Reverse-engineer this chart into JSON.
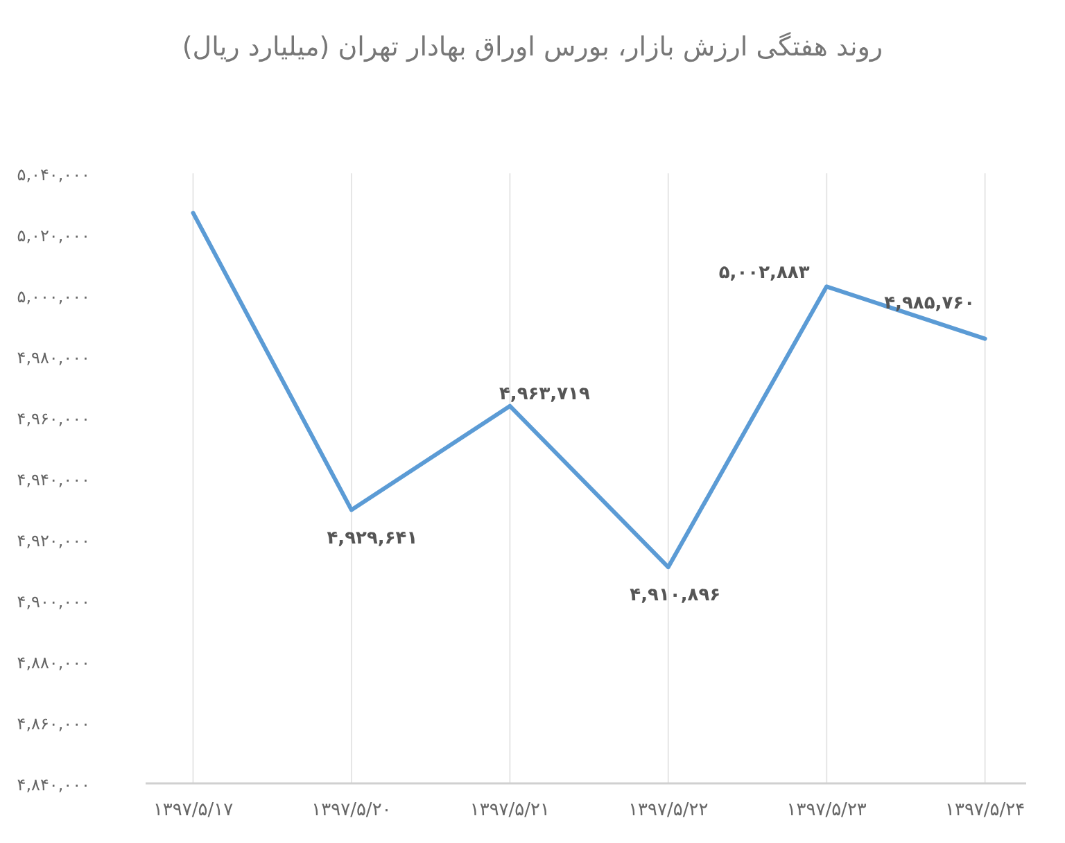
{
  "chart_data": {
    "type": "line",
    "title": "روند هفتگی ارزش بازار، بورس اوراق بهادار تهران (میلیارد ریال)",
    "categories": [
      "۱۳۹۷/۵/۱۷",
      "۱۳۹۷/۵/۲۰",
      "۱۳۹۷/۵/۲۱",
      "۱۳۹۷/۵/۲۲",
      "۱۳۹۷/۵/۲۳",
      "۱۳۹۷/۵/۲۴"
    ],
    "values": [
      5027000,
      4929641,
      4963719,
      4910896,
      5002883,
      4985760
    ],
    "value_labels": [
      null,
      "۴,۹۲۹,۶۴۱",
      "۴,۹۶۳,۷۱۹",
      "۴,۹۱۰,۸۹۶",
      "۵,۰۰۲,۸۸۳",
      "۴,۹۸۵,۷۶۰"
    ],
    "color": "#5b9bd5",
    "ylim": [
      4840000,
      5040000
    ],
    "yticks": [
      {
        "value": 4840000,
        "label": "۴,۸۴۰,۰۰۰"
      },
      {
        "value": 4860000,
        "label": "۴,۸۶۰,۰۰۰"
      },
      {
        "value": 4880000,
        "label": "۴,۸۸۰,۰۰۰"
      },
      {
        "value": 4900000,
        "label": "۴,۹۰۰,۰۰۰"
      },
      {
        "value": 4920000,
        "label": "۴,۹۲۰,۰۰۰"
      },
      {
        "value": 4940000,
        "label": "۴,۹۴۰,۰۰۰"
      },
      {
        "value": 4960000,
        "label": "۴,۹۶۰,۰۰۰"
      },
      {
        "value": 4980000,
        "label": "۴,۹۸۰,۰۰۰"
      },
      {
        "value": 5000000,
        "label": "۵,۰۰۰,۰۰۰"
      },
      {
        "value": 5020000,
        "label": "۵,۰۲۰,۰۰۰"
      },
      {
        "value": 5040000,
        "label": "۵,۰۴۰,۰۰۰"
      }
    ],
    "grid": "x"
  }
}
